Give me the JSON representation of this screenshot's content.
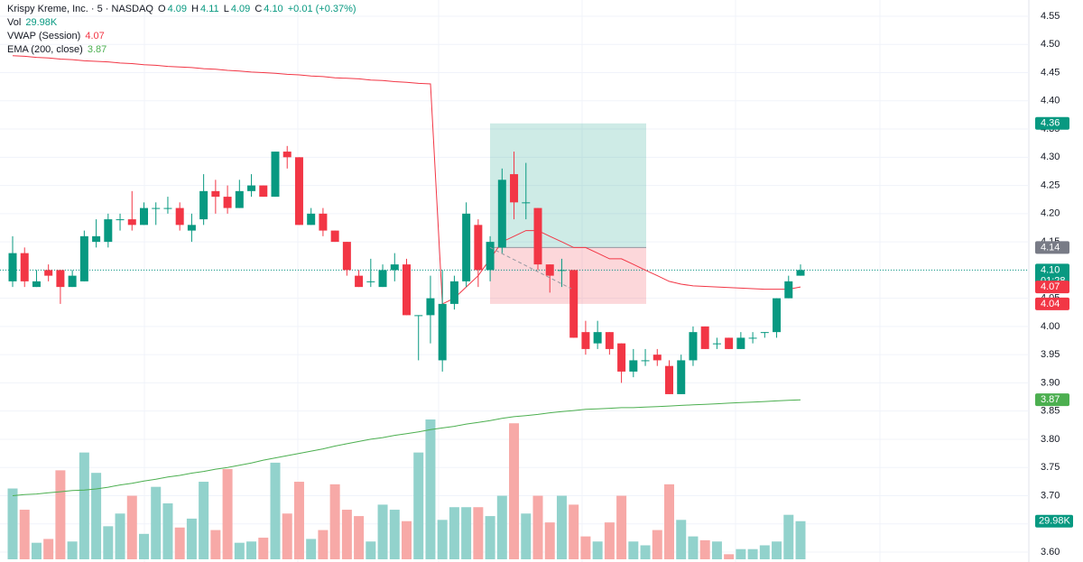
{
  "header": {
    "symbol": "Krispy Kreme, Inc. · 5 · NASDAQ",
    "ohlc": [
      {
        "k": "O",
        "v": "4.09"
      },
      {
        "k": "H",
        "v": "4.11"
      },
      {
        "k": "L",
        "v": "4.09"
      },
      {
        "k": "C",
        "v": "4.10"
      }
    ],
    "change": "+0.01 (+0.37%)",
    "vol_name": "Vol",
    "vol_value": "29.98K",
    "vwap_name": "VWAP (Session)",
    "vwap_value": "4.07",
    "ema_name": "EMA (200, close)",
    "ema_value": "3.87"
  },
  "chart_data": {
    "type": "candlestick",
    "ylim": [
      3.6,
      4.55
    ],
    "yticks": [
      {
        "value": 4.55,
        "label": "4.55"
      },
      {
        "value": 4.5,
        "label": "4.50"
      },
      {
        "value": 4.45,
        "label": "4.45"
      },
      {
        "value": 4.4,
        "label": "4.40"
      },
      {
        "value": 4.35,
        "label": "4.35"
      },
      {
        "value": 4.3,
        "label": "4.30"
      },
      {
        "value": 4.25,
        "label": "4.25"
      },
      {
        "value": 4.2,
        "label": "4.20"
      },
      {
        "value": 4.15,
        "label": "4.15"
      },
      {
        "value": 4.1,
        "label": "4.10"
      },
      {
        "value": 4.05,
        "label": "4.05"
      },
      {
        "value": 4.0,
        "label": "4.00"
      },
      {
        "value": 3.95,
        "label": "3.95"
      },
      {
        "value": 3.9,
        "label": "3.90"
      },
      {
        "value": 3.85,
        "label": "3.85"
      },
      {
        "value": 3.8,
        "label": "3.80"
      },
      {
        "value": 3.75,
        "label": "3.75"
      },
      {
        "value": 3.7,
        "label": "3.70"
      },
      {
        "value": 3.65,
        "label": "3.65"
      },
      {
        "value": 3.6,
        "label": "3.60"
      }
    ],
    "grid": true,
    "up_color": "#089981",
    "down_color": "#f23645",
    "volume_up_color": "#92d2cc",
    "volume_down_color": "#f7a9a7",
    "open": [
      4.08,
      4.13,
      4.07,
      4.1,
      4.1,
      4.07,
      4.08,
      4.15,
      4.15,
      4.19,
      4.19,
      4.18,
      4.21,
      4.21,
      4.21,
      4.17,
      4.19,
      4.24,
      4.23,
      4.21,
      4.24,
      4.25,
      4.23,
      4.31,
      4.3,
      4.18,
      4.2,
      4.17,
      4.15,
      4.09,
      4.08,
      4.07,
      4.1,
      4.11,
      4.02,
      4.02,
      3.94,
      4.04,
      4.08,
      4.18,
      4.1,
      4.14,
      4.27,
      4.22,
      4.21,
      4.11,
      4.1,
      4.1,
      3.99,
      3.97,
      3.99,
      3.97,
      3.92,
      3.94,
      3.95,
      3.93,
      3.88,
      3.94,
      4.0,
      3.97,
      3.98,
      3.96,
      3.98,
      3.99,
      3.99,
      4.05,
      4.09
    ],
    "high": [
      4.16,
      4.14,
      4.1,
      4.11,
      4.1,
      4.1,
      4.17,
      4.19,
      4.2,
      4.2,
      4.24,
      4.22,
      4.22,
      4.23,
      4.22,
      4.2,
      4.27,
      4.26,
      4.25,
      4.26,
      4.27,
      4.25,
      4.31,
      4.32,
      4.3,
      4.21,
      4.21,
      4.17,
      4.15,
      4.1,
      4.12,
      4.11,
      4.13,
      4.12,
      4.02,
      4.09,
      4.1,
      4.09,
      4.22,
      4.19,
      4.16,
      4.28,
      4.31,
      4.29,
      4.21,
      4.11,
      4.12,
      4.1,
      4.01,
      4.01,
      3.99,
      3.97,
      3.96,
      3.96,
      3.96,
      3.94,
      3.95,
      4.0,
      4.0,
      3.98,
      3.98,
      3.99,
      3.99,
      3.99,
      4.05,
      4.09,
      4.11
    ],
    "low": [
      4.07,
      4.07,
      4.07,
      4.08,
      4.04,
      4.07,
      4.08,
      4.14,
      4.14,
      4.17,
      4.17,
      4.18,
      4.18,
      4.2,
      4.17,
      4.15,
      4.18,
      4.2,
      4.2,
      4.21,
      4.23,
      4.23,
      4.23,
      4.28,
      4.18,
      4.18,
      4.16,
      4.15,
      4.09,
      4.07,
      4.07,
      4.07,
      4.08,
      4.02,
      3.94,
      3.97,
      3.92,
      4.03,
      4.07,
      4.07,
      4.08,
      4.13,
      4.19,
      4.19,
      4.1,
      4.06,
      4.07,
      3.98,
      3.95,
      3.96,
      3.95,
      3.9,
      3.91,
      3.93,
      3.93,
      3.88,
      3.88,
      3.93,
      3.96,
      3.96,
      3.96,
      3.96,
      3.97,
      3.98,
      3.98,
      4.05,
      4.09
    ],
    "close": [
      4.13,
      4.08,
      4.08,
      4.09,
      4.07,
      4.09,
      4.16,
      4.16,
      4.19,
      4.19,
      4.18,
      4.21,
      4.21,
      4.21,
      4.18,
      4.18,
      4.24,
      4.23,
      4.21,
      4.24,
      4.25,
      4.23,
      4.31,
      4.3,
      4.18,
      4.2,
      4.17,
      4.15,
      4.1,
      4.07,
      4.08,
      4.1,
      4.11,
      4.02,
      4.02,
      4.05,
      4.04,
      4.08,
      4.2,
      4.1,
      4.15,
      4.26,
      4.22,
      4.22,
      4.11,
      4.09,
      4.1,
      3.98,
      3.96,
      3.99,
      3.96,
      3.92,
      3.94,
      3.94,
      3.94,
      3.88,
      3.94,
      3.99,
      3.96,
      3.97,
      3.96,
      3.98,
      3.98,
      3.99,
      4.05,
      4.08,
      4.1
    ],
    "volume": [
      55700,
      39000,
      13000,
      16000,
      70000,
      14000,
      84000,
      68000,
      26000,
      36000,
      50000,
      20000,
      57000,
      44000,
      25000,
      32000,
      61000,
      23000,
      71000,
      13000,
      14000,
      17000,
      76000,
      36000,
      61000,
      16000,
      23000,
      59000,
      39000,
      34000,
      14000,
      43000,
      39000,
      30000,
      84000,
      110000,
      31000,
      41000,
      41000,
      41000,
      34000,
      50000,
      107000,
      36000,
      50000,
      29000,
      50000,
      43000,
      18000,
      14000,
      29000,
      50000,
      14000,
      11000,
      23000,
      59000,
      31000,
      18000,
      15000,
      14000,
      4000,
      8000,
      8000,
      11000,
      14000,
      35000,
      29980
    ],
    "series": [
      {
        "name": "VWAP (Session)",
        "color": "#f23645",
        "values": [
          4.48,
          4.479,
          4.477,
          4.476,
          4.474,
          4.473,
          4.471,
          4.47,
          4.469,
          4.467,
          4.466,
          4.464,
          4.463,
          4.461,
          4.46,
          4.459,
          4.457,
          4.456,
          4.454,
          4.453,
          4.451,
          4.45,
          4.449,
          4.447,
          4.446,
          4.444,
          4.443,
          4.441,
          4.44,
          4.439,
          4.437,
          4.436,
          4.434,
          4.433,
          4.431,
          4.43,
          4.04,
          4.05,
          4.07,
          4.09,
          4.12,
          4.15,
          4.16,
          4.17,
          4.17,
          4.16,
          4.15,
          4.14,
          4.14,
          4.13,
          4.12,
          4.12,
          4.11,
          4.1,
          4.09,
          4.08,
          4.075,
          4.072,
          4.071,
          4.07,
          4.069,
          4.068,
          4.067,
          4.066,
          4.066,
          4.066,
          4.07
        ]
      },
      {
        "name": "EMA (200, close)",
        "color": "#4caf50",
        "values": [
          3.7,
          3.702,
          3.703,
          3.705,
          3.707,
          3.709,
          3.71,
          3.712,
          3.715,
          3.719,
          3.722,
          3.726,
          3.729,
          3.733,
          3.736,
          3.74,
          3.743,
          3.747,
          3.75,
          3.754,
          3.758,
          3.763,
          3.767,
          3.771,
          3.775,
          3.779,
          3.783,
          3.788,
          3.792,
          3.796,
          3.8,
          3.803,
          3.807,
          3.81,
          3.813,
          3.817,
          3.82,
          3.823,
          3.827,
          3.83,
          3.833,
          3.837,
          3.84,
          3.842,
          3.844,
          3.847,
          3.849,
          3.851,
          3.853,
          3.854,
          3.855,
          3.856,
          3.856,
          3.857,
          3.858,
          3.859,
          3.86,
          3.861,
          3.862,
          3.863,
          3.864,
          3.865,
          3.866,
          3.867,
          3.868,
          3.869,
          3.87
        ]
      }
    ],
    "position": {
      "target": 4.36,
      "entry": 4.14,
      "stop": 4.04
    },
    "price_labels": [
      {
        "value": 4.36,
        "label": "4.36",
        "color": "#089981"
      },
      {
        "value": 4.14,
        "label": "4.14",
        "color": "#787b86"
      },
      {
        "value": 4.1,
        "label": "4.10",
        "sublabel": "01:28",
        "color": "#089981"
      },
      {
        "value": 4.07,
        "label": "4.07",
        "color": "#f23645"
      },
      {
        "value": 4.04,
        "label": "4.04",
        "color": "#f23645"
      },
      {
        "value": 3.87,
        "label": "3.87",
        "color": "#4caf50"
      }
    ],
    "volume_label": {
      "value": 29980,
      "label": "29.98K",
      "color": "#089981"
    }
  }
}
